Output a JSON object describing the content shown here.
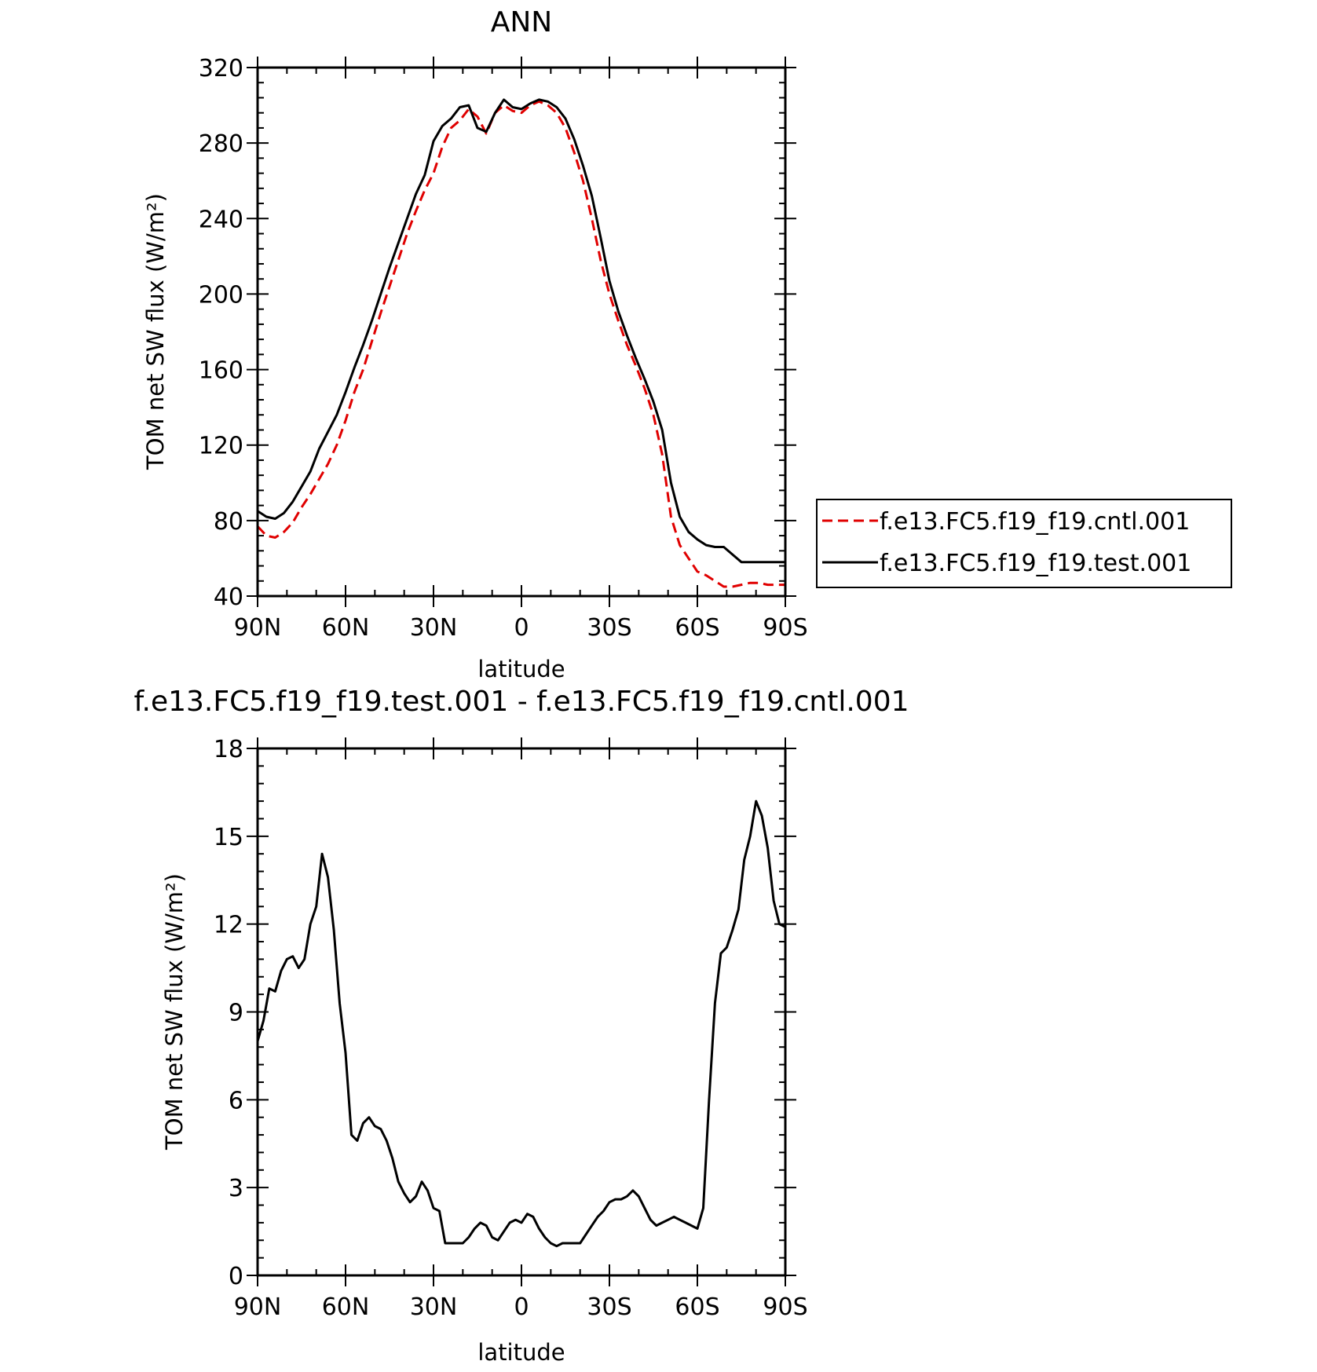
{
  "chart_data": [
    {
      "type": "line",
      "title": "ANN",
      "xlabel": "latitude",
      "ylabel": "TOM net SW flux (W/m²)",
      "xlim": [
        90,
        -90
      ],
      "ylim": [
        40,
        320
      ],
      "xticks": [
        90,
        60,
        30,
        0,
        -30,
        -60,
        -90
      ],
      "xtick_labels": [
        "90N",
        "60N",
        "30N",
        "0",
        "30S",
        "60S",
        "90S"
      ],
      "yticks": [
        40,
        80,
        120,
        160,
        200,
        240,
        280,
        320
      ],
      "grid": false,
      "legend_position": "right",
      "x": [
        90,
        87,
        84,
        81,
        78,
        75,
        72,
        69,
        66,
        63,
        60,
        57,
        54,
        51,
        48,
        45,
        42,
        39,
        36,
        33,
        30,
        27,
        24,
        21,
        18,
        15,
        12,
        9,
        6,
        3,
        0,
        -3,
        -6,
        -9,
        -12,
        -15,
        -18,
        -21,
        -24,
        -27,
        -30,
        -33,
        -36,
        -39,
        -42,
        -45,
        -48,
        -51,
        -54,
        -57,
        -60,
        -63,
        -66,
        -69,
        -72,
        -75,
        -78,
        -81,
        -84,
        -87,
        -90
      ],
      "series": [
        {
          "name": "f.e13.FC5.f19_f19.cntl.001",
          "color": "#e00000",
          "dash": "dashed",
          "values": [
            77,
            72,
            71,
            74,
            79,
            87,
            94,
            102,
            110,
            120,
            133,
            148,
            160,
            175,
            190,
            204,
            218,
            232,
            244,
            255,
            264,
            278,
            288,
            292,
            298,
            294,
            285,
            296,
            300,
            297,
            296,
            300,
            302,
            300,
            296,
            288,
            275,
            260,
            240,
            218,
            200,
            186,
            173,
            162,
            150,
            136,
            115,
            82,
            67,
            60,
            53,
            51,
            48,
            45,
            45,
            46,
            47,
            47,
            46,
            46,
            46
          ]
        },
        {
          "name": "f.e13.FC5.f19_f19.test.001",
          "color": "#000000",
          "dash": "solid",
          "values": [
            85,
            82,
            81,
            84,
            90,
            98,
            106,
            118,
            127,
            136,
            148,
            161,
            173,
            186,
            200,
            214,
            227,
            240,
            253,
            263,
            281,
            289,
            293,
            299,
            300,
            288,
            286,
            296,
            303,
            299,
            298,
            301,
            303,
            302,
            299,
            293,
            282,
            268,
            252,
            230,
            207,
            191,
            178,
            166,
            155,
            143,
            128,
            100,
            82,
            74,
            70,
            67,
            66,
            66,
            62,
            58,
            58,
            58,
            58,
            58,
            58
          ]
        }
      ]
    },
    {
      "type": "line",
      "title": "f.e13.FC5.f19_f19.test.001 - f.e13.FC5.f19_f19.cntl.001",
      "xlabel": "latitude",
      "ylabel": "TOM net SW flux (W/m²)",
      "xlim": [
        90,
        -90
      ],
      "ylim": [
        0,
        18
      ],
      "xticks": [
        90,
        60,
        30,
        0,
        -30,
        -60,
        -90
      ],
      "xtick_labels": [
        "90N",
        "60N",
        "30N",
        "0",
        "30S",
        "60S",
        "90S"
      ],
      "yticks": [
        0,
        3,
        6,
        9,
        12,
        15,
        18
      ],
      "grid": false,
      "x": [
        90,
        88,
        86,
        84,
        82,
        80,
        78,
        76,
        74,
        72,
        70,
        68,
        66,
        64,
        62,
        60,
        58,
        56,
        54,
        52,
        50,
        48,
        46,
        44,
        42,
        40,
        38,
        36,
        34,
        32,
        30,
        28,
        26,
        24,
        22,
        20,
        18,
        16,
        14,
        12,
        10,
        8,
        6,
        4,
        2,
        0,
        -2,
        -4,
        -6,
        -8,
        -10,
        -12,
        -14,
        -16,
        -18,
        -20,
        -22,
        -24,
        -26,
        -28,
        -30,
        -32,
        -34,
        -36,
        -38,
        -40,
        -42,
        -44,
        -46,
        -48,
        -50,
        -52,
        -54,
        -56,
        -58,
        -60,
        -62,
        -64,
        -66,
        -68,
        -70,
        -72,
        -74,
        -76,
        -78,
        -80,
        -82,
        -84,
        -86,
        -88,
        -90
      ],
      "series": [
        {
          "name": "",
          "color": "#000000",
          "values": [
            8.0,
            8.7,
            9.8,
            9.7,
            10.4,
            10.8,
            10.9,
            10.5,
            10.8,
            12.0,
            12.6,
            14.4,
            13.6,
            11.8,
            9.3,
            7.6,
            4.8,
            4.6,
            5.2,
            5.4,
            5.1,
            5.0,
            4.6,
            4.0,
            3.2,
            2.8,
            2.5,
            2.7,
            3.2,
            2.9,
            2.3,
            2.2,
            1.1,
            1.1,
            1.1,
            1.1,
            1.3,
            1.6,
            1.8,
            1.7,
            1.3,
            1.2,
            1.5,
            1.8,
            1.9,
            1.8,
            2.1,
            2.0,
            1.6,
            1.3,
            1.1,
            1.0,
            1.1,
            1.1,
            1.1,
            1.1,
            1.4,
            1.7,
            2.0,
            2.2,
            2.5,
            2.6,
            2.6,
            2.7,
            2.9,
            2.7,
            2.3,
            1.9,
            1.7,
            1.8,
            1.9,
            2.0,
            1.9,
            1.8,
            1.7,
            1.6,
            2.3,
            6.0,
            9.3,
            11.0,
            11.2,
            11.8,
            12.5,
            14.2,
            15.0,
            16.2,
            15.7,
            14.6,
            12.8,
            12.0,
            11.9
          ]
        }
      ]
    }
  ]
}
